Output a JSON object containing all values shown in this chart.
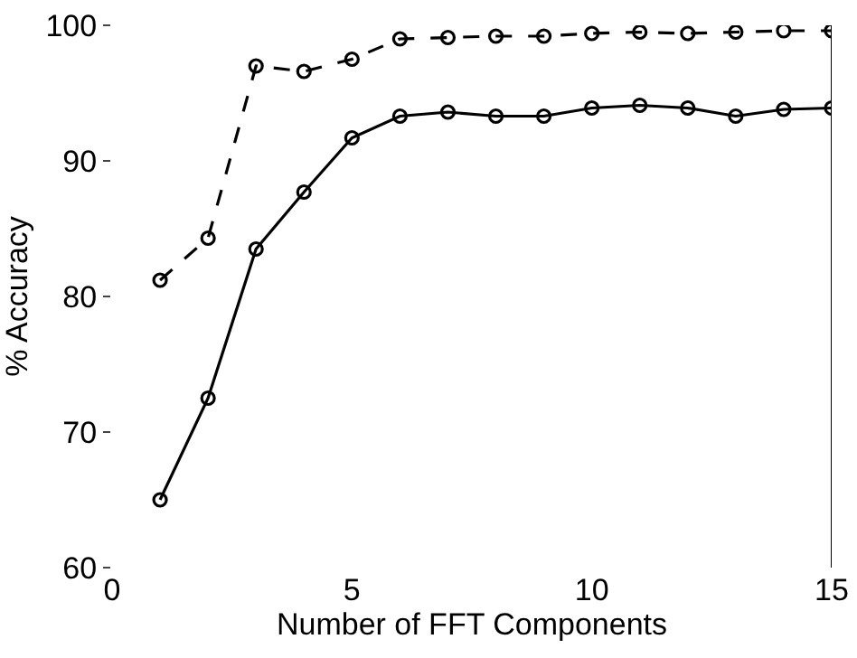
{
  "chart_data": {
    "type": "line",
    "xlabel": "Number of FFT Components",
    "ylabel": "% Accuracy",
    "x": [
      1,
      2,
      3,
      4,
      5,
      6,
      7,
      8,
      9,
      10,
      11,
      12,
      13,
      14,
      15
    ],
    "series": [
      {
        "color": "#000000",
        "line_style": "dashed",
        "values": [
          81.2,
          84.3,
          97.0,
          96.6,
          97.5,
          99.0,
          99.1,
          99.2,
          99.2,
          99.4,
          99.5,
          99.4,
          99.5,
          99.6,
          99.6
        ]
      },
      {
        "color": "#000000",
        "line_style": "solid",
        "values": [
          65.0,
          72.5,
          83.5,
          87.7,
          91.7,
          93.3,
          93.6,
          93.3,
          93.3,
          93.9,
          94.1,
          93.9,
          93.3,
          93.8,
          93.9
        ]
      }
    ],
    "marker": "circle",
    "grid": false,
    "xlim": [
      0,
      15
    ],
    "xticks": [
      0,
      5,
      10,
      15
    ],
    "ylim": [
      60,
      100
    ],
    "yticks": [
      60,
      70,
      80,
      90,
      100
    ]
  }
}
